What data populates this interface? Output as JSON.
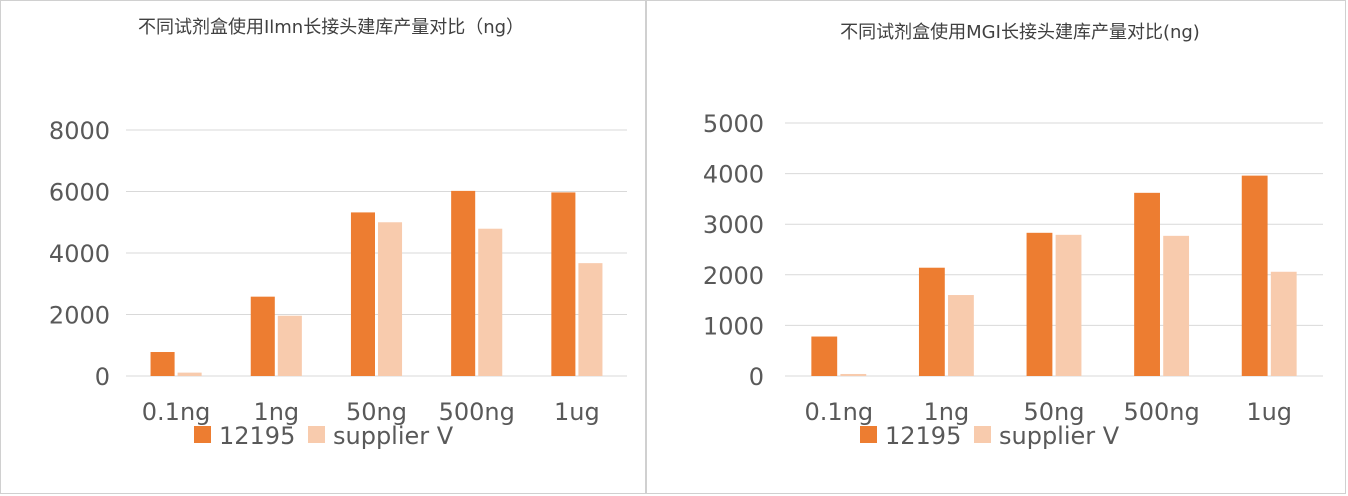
{
  "colors": {
    "series1": "#ED7D31",
    "series2": "#F8CBAD",
    "grid": "#D9D9D9",
    "text": "#595959"
  },
  "charts": [
    {
      "id": "left",
      "chart_data": {
        "type": "bar",
        "title": "不同试剂盒使用Ilmn长接头建库产量对比（ng）",
        "categories": [
          "0.1ng",
          "1ng",
          "50ng",
          "500ng",
          "1ug"
        ],
        "series": [
          {
            "name": "12195",
            "values": [
              780,
              2580,
              5320,
              6020,
              5970
            ]
          },
          {
            "name": "supplier V",
            "values": [
              110,
              1960,
              5000,
              4790,
              3670
            ]
          }
        ],
        "ylim": [
          0,
          8000
        ],
        "yticks": [
          0,
          2000,
          4000,
          6000,
          8000
        ],
        "ytick_labels": [
          "0",
          "2000",
          "4000",
          "6000",
          "8000"
        ],
        "grid": true,
        "legend": "bottom",
        "xlabel": "",
        "ylabel": ""
      }
    },
    {
      "id": "right",
      "chart_data": {
        "type": "bar",
        "title": "不同试剂盒使用MGI长接头建库产量对比(ng)",
        "categories": [
          "0.1ng",
          "1ng",
          "50ng",
          "500ng",
          "1ug"
        ],
        "series": [
          {
            "name": "12195",
            "values": [
              780,
              2140,
              2830,
              3620,
              3960
            ]
          },
          {
            "name": "supplier V",
            "values": [
              40,
              1600,
              2790,
              2770,
              2060
            ]
          }
        ],
        "ylim": [
          0,
          5000
        ],
        "yticks": [
          0,
          1000,
          2000,
          3000,
          4000,
          5000
        ],
        "ytick_labels": [
          "0",
          "1000",
          "2000",
          "3000",
          "4000",
          "5000"
        ],
        "grid": true,
        "legend": "bottom",
        "xlabel": "",
        "ylabel": ""
      }
    }
  ]
}
